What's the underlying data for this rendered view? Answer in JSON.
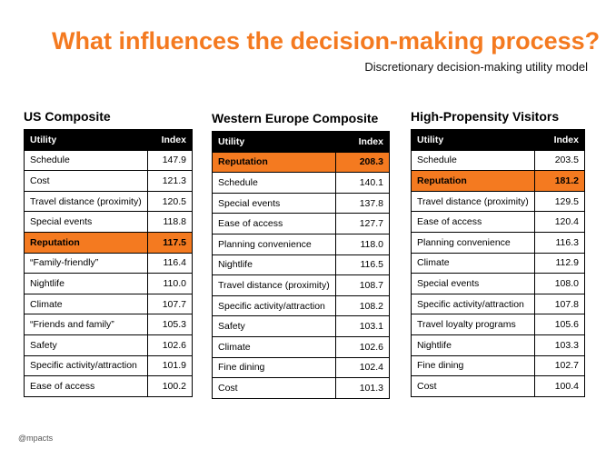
{
  "title": "What influences the decision-making process?",
  "subtitle": "Discretionary decision-making utility model",
  "brand": "@mpacts",
  "accent_color": "#f47a20",
  "columns": {
    "utility": "Utility",
    "index": "Index"
  },
  "panels": [
    {
      "heading": "US Composite",
      "highlight": "Reputation",
      "rows": [
        {
          "utility": "Schedule",
          "index": "147.9"
        },
        {
          "utility": "Cost",
          "index": "121.3"
        },
        {
          "utility": "Travel distance (proximity)",
          "index": "120.5"
        },
        {
          "utility": "Special events",
          "index": "118.8"
        },
        {
          "utility": "Reputation",
          "index": "117.5"
        },
        {
          "utility": "“Family-friendly”",
          "index": "116.4"
        },
        {
          "utility": "Nightlife",
          "index": "110.0"
        },
        {
          "utility": "Climate",
          "index": "107.7"
        },
        {
          "utility": "“Friends and family”",
          "index": "105.3"
        },
        {
          "utility": "Safety",
          "index": "102.6"
        },
        {
          "utility": "Specific activity/attraction",
          "index": "101.9"
        },
        {
          "utility": "Ease of access",
          "index": "100.2"
        }
      ]
    },
    {
      "heading": "Western Europe Composite",
      "highlight": "Reputation",
      "rows": [
        {
          "utility": "Reputation",
          "index": "208.3"
        },
        {
          "utility": "Schedule",
          "index": "140.1"
        },
        {
          "utility": "Special events",
          "index": "137.8"
        },
        {
          "utility": "Ease of access",
          "index": "127.7"
        },
        {
          "utility": "Planning convenience",
          "index": "118.0"
        },
        {
          "utility": "Nightlife",
          "index": "116.5"
        },
        {
          "utility": "Travel distance (proximity)",
          "index": "108.7"
        },
        {
          "utility": "Specific activity/attraction",
          "index": "108.2"
        },
        {
          "utility": "Safety",
          "index": "103.1"
        },
        {
          "utility": "Climate",
          "index": "102.6"
        },
        {
          "utility": "Fine dining",
          "index": "102.4"
        },
        {
          "utility": "Cost",
          "index": "101.3"
        }
      ]
    },
    {
      "heading": "High-Propensity Visitors",
      "highlight": "Reputation",
      "rows": [
        {
          "utility": "Schedule",
          "index": "203.5"
        },
        {
          "utility": "Reputation",
          "index": "181.2"
        },
        {
          "utility": "Travel distance (proximity)",
          "index": "129.5"
        },
        {
          "utility": "Ease of access",
          "index": "120.4"
        },
        {
          "utility": "Planning convenience",
          "index": "116.3"
        },
        {
          "utility": "Climate",
          "index": "112.9"
        },
        {
          "utility": "Special events",
          "index": "108.0"
        },
        {
          "utility": "Specific activity/attraction",
          "index": "107.8"
        },
        {
          "utility": "Travel loyalty programs",
          "index": "105.6"
        },
        {
          "utility": "Nightlife",
          "index": "103.3"
        },
        {
          "utility": "Fine dining",
          "index": "102.7"
        },
        {
          "utility": "Cost",
          "index": "100.4"
        }
      ]
    }
  ]
}
